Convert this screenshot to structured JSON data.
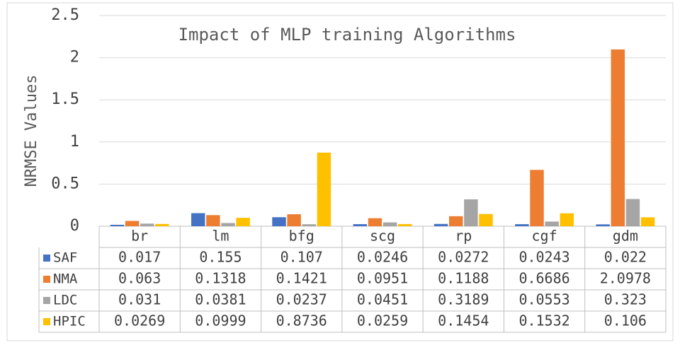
{
  "chart_data": {
    "type": "bar",
    "title": "Impact of MLP training Algorithms",
    "y_label": "NRMSE Values",
    "categories": [
      "br",
      "lm",
      "bfg",
      "scg",
      "rp",
      "cgf",
      "gdm"
    ],
    "series": [
      {
        "name": "SAF",
        "color": "#4472c4",
        "values": [
          0.017,
          0.155,
          0.107,
          0.0246,
          0.0272,
          0.0243,
          0.022
        ]
      },
      {
        "name": "NMA",
        "color": "#ed7d31",
        "values": [
          0.063,
          0.1318,
          0.1421,
          0.0951,
          0.1188,
          0.6686,
          2.0978
        ]
      },
      {
        "name": "LDC",
        "color": "#a5a5a5",
        "values": [
          0.031,
          0.0381,
          0.0237,
          0.0451,
          0.3189,
          0.0553,
          0.323
        ]
      },
      {
        "name": "HPIC",
        "color": "#ffc000",
        "values": [
          0.0269,
          0.0999,
          0.8736,
          0.0259,
          0.1454,
          0.1532,
          0.106
        ]
      }
    ],
    "ylim": [
      0,
      2.5
    ],
    "yticks": [
      0,
      0.5,
      1,
      1.5,
      2,
      2.5
    ],
    "grid": true
  }
}
